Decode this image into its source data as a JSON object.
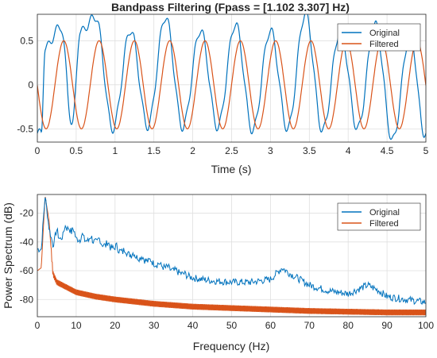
{
  "colors": {
    "original": "#0072BD",
    "filtered": "#D95319",
    "grid": "#DFDFDF",
    "axes": "#262626"
  },
  "chart_data": [
    {
      "type": "line",
      "title": "Bandpass Filtering  (Fpass = [1.102 3.307] Hz)",
      "xlabel": "Time (s)",
      "ylabel": "",
      "xlim": [
        0,
        5
      ],
      "ylim": [
        -0.65,
        0.8
      ],
      "x_ticks": [
        "0",
        "0.5",
        "1",
        "1.5",
        "2",
        "2.5",
        "3",
        "3.5",
        "4",
        "4.5",
        "5"
      ],
      "y_ticks": [
        "-0.5",
        "0",
        "0.5"
      ],
      "grid": true,
      "legend_position": "top-right",
      "series": [
        {
          "name": "Original",
          "peaks": [
            {
              "t": 0.1,
              "v": 0.42
            },
            {
              "t": 0.3,
              "v": 0.66
            },
            {
              "t": 0.55,
              "v": 0.6
            },
            {
              "t": 0.75,
              "v": 0.77
            },
            {
              "t": 1.2,
              "v": 0.62
            },
            {
              "t": 1.65,
              "v": 0.77
            },
            {
              "t": 2.1,
              "v": 0.62
            },
            {
              "t": 2.55,
              "v": 0.69
            },
            {
              "t": 3.0,
              "v": 0.62
            },
            {
              "t": 3.45,
              "v": 0.81
            },
            {
              "t": 3.9,
              "v": 0.62
            },
            {
              "t": 4.35,
              "v": 0.68
            },
            {
              "t": 4.8,
              "v": 0.58
            }
          ],
          "troughs": [
            {
              "t": 0.05,
              "v": -0.55
            },
            {
              "t": 0.45,
              "v": -0.45
            },
            {
              "t": 0.97,
              "v": -0.5
            },
            {
              "t": 1.42,
              "v": -0.47
            },
            {
              "t": 1.87,
              "v": -0.48
            },
            {
              "t": 2.32,
              "v": -0.48
            },
            {
              "t": 2.77,
              "v": -0.52
            },
            {
              "t": 3.22,
              "v": -0.5
            },
            {
              "t": 3.67,
              "v": -0.52
            },
            {
              "t": 4.12,
              "v": -0.5
            },
            {
              "t": 4.57,
              "v": -0.63
            },
            {
              "t": 4.98,
              "v": -0.55
            }
          ]
        },
        {
          "name": "Filtered",
          "frequency_hz": 2.2,
          "amplitude": 0.5,
          "phase_peak_t": 0.34
        }
      ]
    },
    {
      "type": "line",
      "title": "",
      "xlabel": "Frequency (Hz)",
      "ylabel": "Power Spectrum (dB)",
      "xlim": [
        0,
        100
      ],
      "ylim": [
        -92,
        -7
      ],
      "x_ticks": [
        "0",
        "10",
        "20",
        "30",
        "40",
        "50",
        "60",
        "70",
        "80",
        "90",
        "100"
      ],
      "y_ticks": [
        "-20",
        "-40",
        "-60",
        "-80"
      ],
      "grid": true,
      "legend_position": "top-right",
      "series": [
        {
          "name": "Original",
          "points": [
            [
              0,
              -45
            ],
            [
              1,
              -45
            ],
            [
              2,
              -8
            ],
            [
              3,
              -30
            ],
            [
              4,
              -42
            ],
            [
              5,
              -36
            ],
            [
              6,
              -38
            ],
            [
              8,
              -30
            ],
            [
              10,
              -38
            ],
            [
              15,
              -40
            ],
            [
              20,
              -45
            ],
            [
              25,
              -50
            ],
            [
              30,
              -55
            ],
            [
              35,
              -60
            ],
            [
              40,
              -65
            ],
            [
              45,
              -67
            ],
            [
              50,
              -68
            ],
            [
              55,
              -68
            ],
            [
              60,
              -66
            ],
            [
              63,
              -58
            ],
            [
              65,
              -62
            ],
            [
              70,
              -70
            ],
            [
              75,
              -74
            ],
            [
              80,
              -76
            ],
            [
              85,
              -70
            ],
            [
              88,
              -74
            ],
            [
              90,
              -78
            ],
            [
              95,
              -80
            ],
            [
              100,
              -82
            ]
          ]
        },
        {
          "name": "Filtered",
          "points": [
            [
              0,
              -60
            ],
            [
              1,
              -58
            ],
            [
              2,
              -8
            ],
            [
              3,
              -25
            ],
            [
              4,
              -62
            ],
            [
              5,
              -68
            ],
            [
              10,
              -75
            ],
            [
              15,
              -78
            ],
            [
              20,
              -80
            ],
            [
              30,
              -83
            ],
            [
              40,
              -85
            ],
            [
              50,
              -86
            ],
            [
              60,
              -87
            ],
            [
              70,
              -88
            ],
            [
              80,
              -88.5
            ],
            [
              90,
              -89
            ],
            [
              100,
              -89
            ]
          ],
          "band_width_db": 4
        }
      ]
    }
  ]
}
